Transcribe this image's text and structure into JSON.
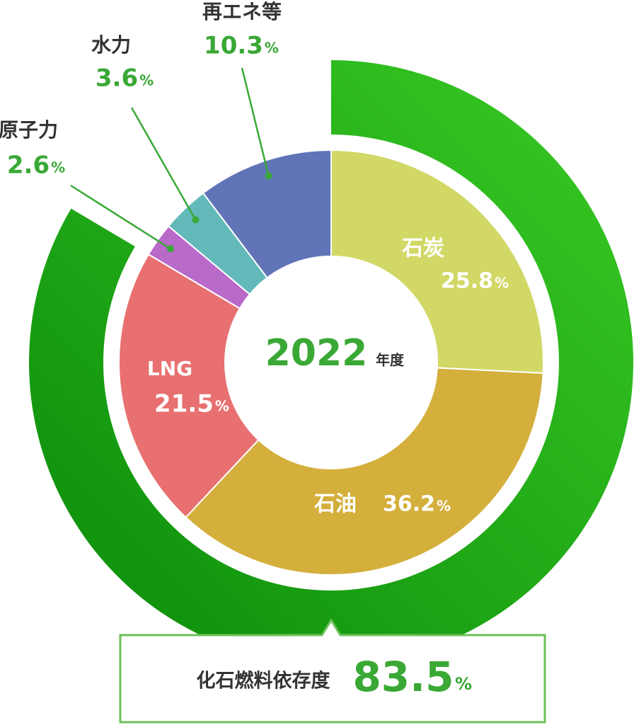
{
  "chart_data": {
    "type": "donut",
    "center_label": "2022",
    "center_unit": "年度",
    "unit": "%",
    "categories": [
      "石炭",
      "石油",
      "LNG",
      "原子力",
      "水力",
      "再エネ等"
    ],
    "values": [
      25.8,
      36.2,
      21.5,
      2.6,
      3.6,
      10.3
    ],
    "colors": [
      "#d1d866",
      "#d4af3b",
      "#e87070",
      "#b86ac9",
      "#63b9ba",
      "#6174b8"
    ],
    "fossil": {
      "label": "化石燃料依存度",
      "value": 83.5,
      "color_start": "#3acb25",
      "color_end": "#0a8a0a"
    }
  }
}
